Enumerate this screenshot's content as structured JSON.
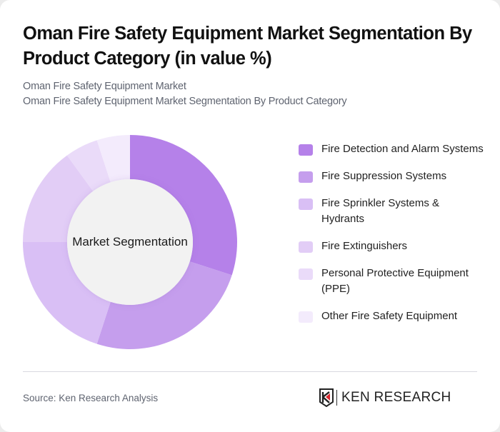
{
  "header": {
    "title": "Oman Fire Safety Equipment Market Segmentation By Product Category (in value %)",
    "subtitle_line1": "Oman Fire Safety Equipment Market",
    "subtitle_line2": "Oman Fire Safety Equipment Market Segmentation By Product Category"
  },
  "chart": {
    "center_label": "Market Segmentation"
  },
  "legend": {
    "items": [
      {
        "label": "Fire Detection and Alarm Systems",
        "color": "#b581e9"
      },
      {
        "label": "Fire Suppression Systems",
        "color": "#c59eed"
      },
      {
        "label": "Fire Sprinkler Systems & Hydrants",
        "color": "#d9bff5"
      },
      {
        "label": "Fire Extinguishers",
        "color": "#e2cdf6"
      },
      {
        "label": "Personal Protective Equipment (PPE)",
        "color": "#eadbf9"
      },
      {
        "label": "Other Fire Safety Equipment",
        "color": "#f3ebfc"
      }
    ]
  },
  "footer": {
    "source": "Source: Ken Research Analysis",
    "logo_text": "KEN RESEARCH"
  },
  "chart_data": {
    "type": "pie",
    "variant": "donut",
    "title": "Oman Fire Safety Equipment Market Segmentation By Product Category (in value %)",
    "center_label": "Market Segmentation",
    "categories": [
      "Fire Detection and Alarm Systems",
      "Fire Suppression Systems",
      "Fire Sprinkler Systems & Hydrants",
      "Fire Extinguishers",
      "Personal Protective Equipment (PPE)",
      "Other Fire Safety Equipment"
    ],
    "values": [
      30,
      25,
      20,
      15,
      5,
      5
    ],
    "colors": [
      "#b581e9",
      "#c59eed",
      "#d9bff5",
      "#e2cdf6",
      "#eadbf9",
      "#f3ebfc"
    ],
    "unit": "%",
    "start_angle_deg": 0,
    "direction": "clockwise",
    "legend_position": "right"
  }
}
